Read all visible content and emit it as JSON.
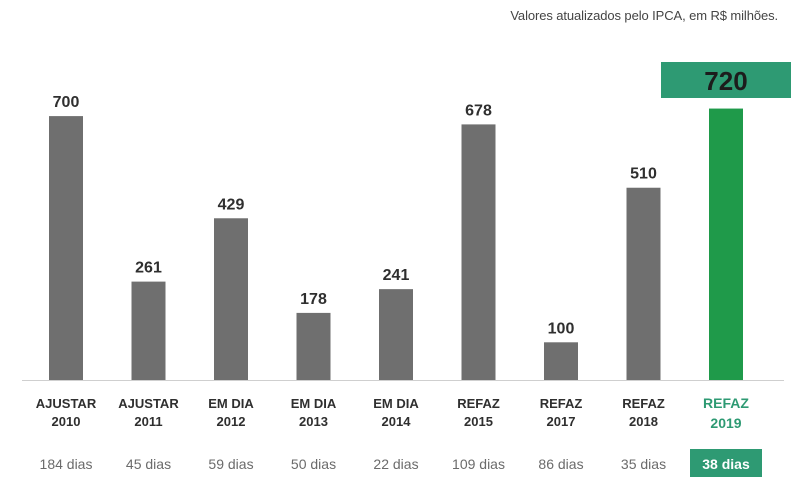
{
  "subtitle": "Valores atualizados pelo IPCA, em R$ milhões.",
  "colors": {
    "bar": "#6f6f6f",
    "highlight": "#2e9a73",
    "highlight_bar": "#1f9a4a",
    "baseline": "#cfcfcf"
  },
  "chart_data": {
    "type": "bar",
    "title": "",
    "xlabel": "",
    "ylabel": "",
    "ylim": [
      0,
      800
    ],
    "grid": false,
    "categories": [
      [
        "AJUSTAR",
        "2010"
      ],
      [
        "AJUSTAR",
        "2011"
      ],
      [
        "EM DIA",
        "2012"
      ],
      [
        "EM DIA",
        "2013"
      ],
      [
        "EM DIA",
        "2014"
      ],
      [
        "REFAZ",
        "2015"
      ],
      [
        "REFAZ",
        "2017"
      ],
      [
        "REFAZ",
        "2018"
      ],
      [
        "REFAZ",
        "2019"
      ]
    ],
    "values": [
      700,
      261,
      429,
      178,
      241,
      678,
      100,
      510,
      720
    ],
    "durations": [
      "184 dias",
      "45 dias",
      "59 dias",
      "50 dias",
      "22 dias",
      "109 dias",
      "86 dias",
      "35 dias",
      "38 dias"
    ],
    "highlight_index": 8
  }
}
